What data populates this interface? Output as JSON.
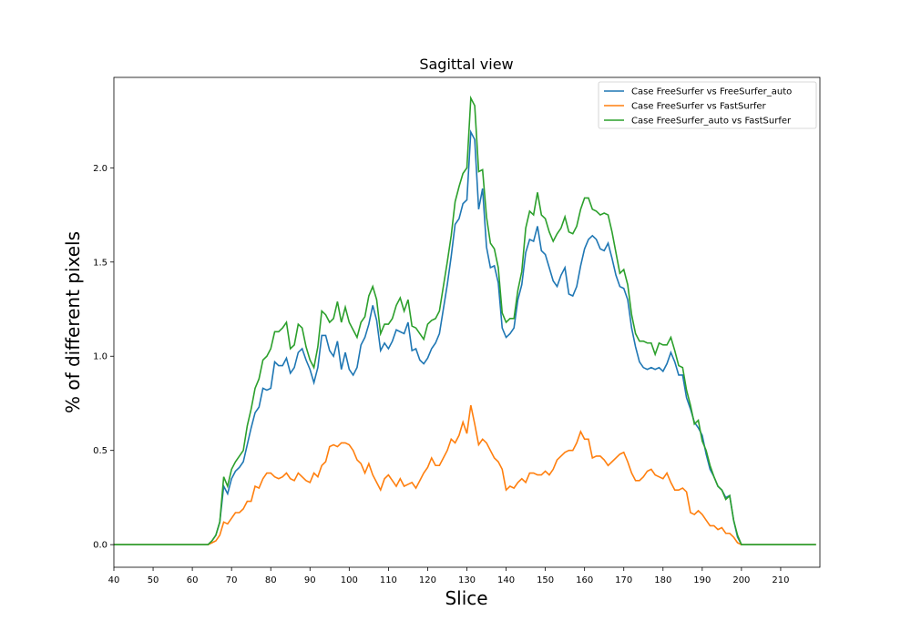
{
  "chart_data": {
    "type": "line",
    "title": "Sagittal view",
    "x_label": "Slice",
    "y_label": "% of different pixels",
    "x": [
      40,
      63,
      64,
      65,
      66,
      67,
      68,
      69,
      70,
      71,
      72,
      73,
      74,
      75,
      76,
      77,
      78,
      79,
      80,
      81,
      82,
      83,
      84,
      85,
      86,
      87,
      88,
      89,
      90,
      91,
      92,
      93,
      94,
      95,
      96,
      97,
      98,
      99,
      100,
      101,
      102,
      103,
      104,
      105,
      106,
      107,
      108,
      109,
      110,
      111,
      112,
      113,
      114,
      115,
      116,
      117,
      118,
      119,
      120,
      121,
      122,
      123,
      124,
      125,
      126,
      127,
      128,
      129,
      130,
      131,
      132,
      133,
      134,
      135,
      136,
      137,
      138,
      139,
      140,
      141,
      142,
      143,
      144,
      145,
      146,
      147,
      148,
      149,
      150,
      151,
      152,
      153,
      154,
      155,
      156,
      157,
      158,
      159,
      160,
      161,
      162,
      163,
      164,
      165,
      166,
      167,
      168,
      169,
      170,
      171,
      172,
      173,
      174,
      175,
      176,
      177,
      178,
      179,
      180,
      181,
      182,
      183,
      184,
      185,
      186,
      187,
      188,
      189,
      190,
      191,
      192,
      193,
      194,
      195,
      196,
      197,
      198,
      199,
      200,
      219
    ],
    "series": [
      {
        "name": "Case FreeSurfer vs FreeSurfer_auto",
        "color": "#1f77b4",
        "values": [
          0,
          0,
          0,
          0.02,
          0.05,
          0.12,
          0.31,
          0.27,
          0.35,
          0.39,
          0.41,
          0.44,
          0.53,
          0.62,
          0.7,
          0.73,
          0.83,
          0.82,
          0.83,
          0.97,
          0.95,
          0.95,
          0.99,
          0.91,
          0.94,
          1.02,
          1.04,
          0.98,
          0.93,
          0.86,
          0.94,
          1.11,
          1.11,
          1.03,
          1.0,
          1.08,
          0.93,
          1.02,
          0.93,
          0.9,
          0.94,
          1.06,
          1.1,
          1.17,
          1.27,
          1.19,
          1.03,
          1.07,
          1.04,
          1.08,
          1.14,
          1.13,
          1.12,
          1.18,
          1.03,
          1.04,
          0.98,
          0.96,
          0.99,
          1.04,
          1.07,
          1.12,
          1.25,
          1.38,
          1.53,
          1.7,
          1.73,
          1.81,
          1.83,
          2.19,
          2.15,
          1.78,
          1.89,
          1.58,
          1.47,
          1.48,
          1.39,
          1.15,
          1.1,
          1.12,
          1.15,
          1.3,
          1.38,
          1.55,
          1.62,
          1.61,
          1.69,
          1.56,
          1.54,
          1.47,
          1.4,
          1.37,
          1.43,
          1.47,
          1.33,
          1.32,
          1.37,
          1.48,
          1.57,
          1.62,
          1.64,
          1.62,
          1.57,
          1.56,
          1.6,
          1.52,
          1.43,
          1.37,
          1.36,
          1.3,
          1.15,
          1.05,
          0.97,
          0.94,
          0.93,
          0.94,
          0.93,
          0.94,
          0.92,
          0.96,
          1.02,
          0.97,
          0.9,
          0.9,
          0.78,
          0.72,
          0.65,
          0.62,
          0.58,
          0.48,
          0.4,
          0.36,
          0.31,
          0.29,
          0.25,
          0.26,
          0.13,
          0.04,
          0,
          0
        ]
      },
      {
        "name": "Case FreeSurfer vs FastSurfer",
        "color": "#ff7f0e",
        "values": [
          0,
          0,
          0,
          0.01,
          0.02,
          0.05,
          0.12,
          0.11,
          0.14,
          0.17,
          0.17,
          0.19,
          0.23,
          0.23,
          0.31,
          0.3,
          0.35,
          0.38,
          0.38,
          0.36,
          0.35,
          0.36,
          0.38,
          0.35,
          0.34,
          0.38,
          0.36,
          0.34,
          0.33,
          0.38,
          0.36,
          0.42,
          0.44,
          0.52,
          0.53,
          0.52,
          0.54,
          0.54,
          0.53,
          0.5,
          0.45,
          0.43,
          0.38,
          0.43,
          0.37,
          0.33,
          0.29,
          0.35,
          0.37,
          0.34,
          0.31,
          0.35,
          0.31,
          0.32,
          0.33,
          0.3,
          0.34,
          0.38,
          0.41,
          0.46,
          0.42,
          0.42,
          0.46,
          0.5,
          0.56,
          0.54,
          0.58,
          0.65,
          0.59,
          0.74,
          0.64,
          0.53,
          0.56,
          0.54,
          0.5,
          0.46,
          0.44,
          0.4,
          0.29,
          0.31,
          0.3,
          0.33,
          0.35,
          0.33,
          0.38,
          0.38,
          0.37,
          0.37,
          0.39,
          0.37,
          0.4,
          0.45,
          0.47,
          0.49,
          0.5,
          0.5,
          0.54,
          0.6,
          0.56,
          0.56,
          0.46,
          0.47,
          0.47,
          0.45,
          0.42,
          0.44,
          0.46,
          0.48,
          0.49,
          0.44,
          0.38,
          0.34,
          0.34,
          0.36,
          0.39,
          0.4,
          0.37,
          0.36,
          0.35,
          0.38,
          0.33,
          0.29,
          0.29,
          0.3,
          0.28,
          0.17,
          0.16,
          0.18,
          0.16,
          0.13,
          0.1,
          0.1,
          0.08,
          0.09,
          0.06,
          0.06,
          0.04,
          0.01,
          0,
          0
        ]
      },
      {
        "name": "Case FreeSurfer_auto vs FastSurfer",
        "color": "#2ca02c",
        "values": [
          0,
          0,
          0,
          0.02,
          0.05,
          0.12,
          0.36,
          0.31,
          0.4,
          0.44,
          0.47,
          0.5,
          0.63,
          0.72,
          0.83,
          0.88,
          0.98,
          1.0,
          1.04,
          1.13,
          1.13,
          1.15,
          1.18,
          1.04,
          1.06,
          1.17,
          1.15,
          1.05,
          0.98,
          0.94,
          1.05,
          1.24,
          1.22,
          1.18,
          1.2,
          1.29,
          1.18,
          1.26,
          1.18,
          1.14,
          1.1,
          1.18,
          1.21,
          1.32,
          1.37,
          1.3,
          1.12,
          1.17,
          1.17,
          1.2,
          1.27,
          1.31,
          1.24,
          1.3,
          1.16,
          1.15,
          1.12,
          1.09,
          1.17,
          1.19,
          1.2,
          1.24,
          1.37,
          1.5,
          1.64,
          1.82,
          1.9,
          1.97,
          2.0,
          2.37,
          2.33,
          1.98,
          1.99,
          1.74,
          1.6,
          1.57,
          1.47,
          1.23,
          1.18,
          1.2,
          1.2,
          1.35,
          1.45,
          1.68,
          1.77,
          1.75,
          1.87,
          1.75,
          1.73,
          1.66,
          1.61,
          1.65,
          1.68,
          1.74,
          1.66,
          1.65,
          1.69,
          1.78,
          1.84,
          1.84,
          1.78,
          1.77,
          1.75,
          1.76,
          1.75,
          1.66,
          1.55,
          1.44,
          1.46,
          1.38,
          1.22,
          1.12,
          1.08,
          1.08,
          1.07,
          1.07,
          1.01,
          1.07,
          1.06,
          1.06,
          1.1,
          1.03,
          0.95,
          0.94,
          0.82,
          0.74,
          0.64,
          0.66,
          0.55,
          0.5,
          0.42,
          0.36,
          0.31,
          0.29,
          0.24,
          0.26,
          0.13,
          0.05,
          0,
          0
        ]
      }
    ],
    "xlim": [
      40,
      220
    ],
    "xticks": [
      40,
      50,
      60,
      70,
      80,
      90,
      100,
      110,
      120,
      130,
      140,
      150,
      160,
      170,
      180,
      190,
      200,
      210
    ],
    "ylim": [
      -0.12,
      2.48
    ],
    "yticks": [
      {
        "value": 0,
        "label": "0.0"
      },
      0.5,
      {
        "value": 1,
        "label": "1.0"
      },
      1.5,
      {
        "value": 2,
        "label": "2.0"
      }
    ],
    "grid": false,
    "legend": "upper right"
  }
}
